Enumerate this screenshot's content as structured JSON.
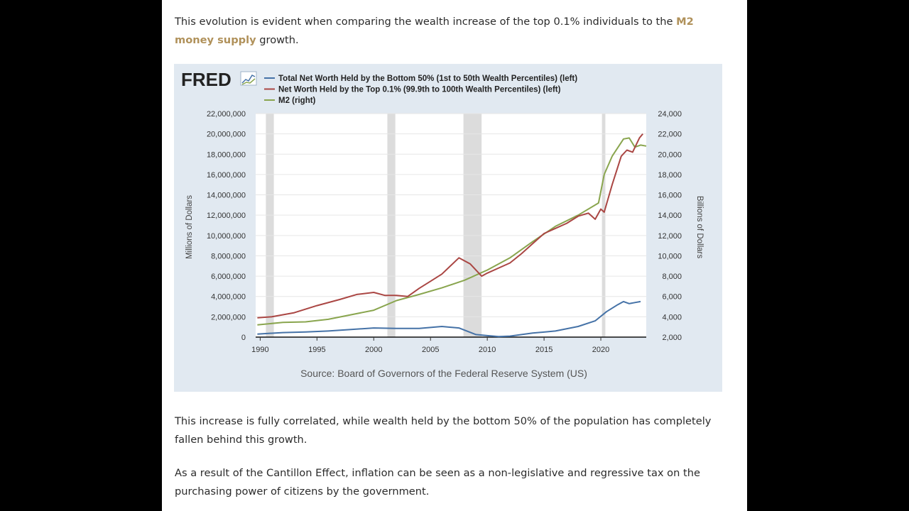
{
  "article": {
    "para1": {
      "prefix": "This evolution is evident when comparing the wealth increase of the top 0.1% individuals to the ",
      "link": "M2 money supply",
      "suffix": " growth."
    },
    "para2": "This increase is fully correlated, while wealth held by the bottom 50% of the population has completely fallen behind this growth.",
    "para3": "As a result of the Cantillon Effect, inflation can be seen as a non-legislative and regressive tax on the purchasing power of citizens by the government.",
    "link_color": "#b0915a"
  },
  "chart_data": {
    "type": "line",
    "logo_text": "FRED",
    "source": "Source: Board of Governors of the Federal Reserve System (US)",
    "ylabel_left": "Millions of Dollars",
    "ylabel_right": "Billions of Dollars",
    "xlim": [
      1989.6,
      2024.0
    ],
    "ylim_left": [
      0,
      22000000
    ],
    "ylim_right": [
      2000,
      24000
    ],
    "x_ticks": [
      1990,
      1995,
      2000,
      2005,
      2010,
      2015,
      2020
    ],
    "y_ticks_left": [
      "22,000,000",
      "20,000,000",
      "18,000,000",
      "16,000,000",
      "14,000,000",
      "12,000,000",
      "10,000,000",
      "8,000,000",
      "6,000,000",
      "4,000,000",
      "2,000,000",
      "0"
    ],
    "y_ticks_right": [
      "24,000",
      "22,000",
      "20,000",
      "18,000",
      "16,000",
      "14,000",
      "12,000",
      "10,000",
      "8,000",
      "6,000",
      "4,000",
      "2,000"
    ],
    "recessions": [
      [
        1990.5,
        1991.2
      ],
      [
        2001.2,
        2001.9
      ],
      [
        2007.9,
        2009.5
      ],
      [
        2020.1,
        2020.4
      ]
    ],
    "grid": true,
    "legend_placement": "top",
    "series": [
      {
        "name": "Total Net Worth Held by the Bottom 50% (1st to 50th Wealth Percentiles) (left)",
        "axis": "left",
        "color": "#4572a7",
        "x": [
          1989.75,
          1992,
          1994,
          1996,
          1998,
          2000,
          2002,
          2004,
          2006,
          2007.5,
          2009,
          2010,
          2011,
          2012,
          2014,
          2016,
          2018,
          2019.5,
          2020.5,
          2021.5,
          2022,
          2022.5,
          2023,
          2023.5
        ],
        "values": [
          300000,
          450000,
          500000,
          600000,
          750000,
          900000,
          850000,
          850000,
          1050000,
          900000,
          250000,
          150000,
          50000,
          100000,
          400000,
          600000,
          1050000,
          1600000,
          2500000,
          3200000,
          3500000,
          3300000,
          3400000,
          3500000
        ]
      },
      {
        "name": "Net Worth Held by the Top 0.1% (99.9th to 100th Wealth Percentiles) (left)",
        "axis": "left",
        "color": "#aa4643",
        "x": [
          1989.75,
          1991,
          1993,
          1995,
          1997,
          1998.5,
          2000,
          2001,
          2002,
          2003,
          2004,
          2005,
          2006,
          2007.5,
          2008.5,
          2009.5,
          2010,
          2011,
          2012,
          2013,
          2014,
          2015,
          2016,
          2017,
          2018,
          2018.9,
          2019.5,
          2020,
          2020.3,
          2021,
          2021.8,
          2022.3,
          2022.8,
          2023.4,
          2023.7
        ],
        "values": [
          1900000,
          2000000,
          2400000,
          3100000,
          3700000,
          4200000,
          4400000,
          4100000,
          4100000,
          4000000,
          4800000,
          5500000,
          6200000,
          7800000,
          7200000,
          6000000,
          6300000,
          6800000,
          7300000,
          8200000,
          9200000,
          10200000,
          10700000,
          11200000,
          11900000,
          12200000,
          11600000,
          12600000,
          12300000,
          15000000,
          17800000,
          18400000,
          18200000,
          19600000,
          20000000
        ]
      },
      {
        "name": "M2 (right)",
        "axis": "right",
        "color": "#89a54e",
        "x": [
          1989.75,
          1992,
          1994,
          1996,
          1998,
          2000,
          2002,
          2004,
          2006,
          2008,
          2010,
          2012,
          2014,
          2016,
          2018,
          2019.8,
          2020.3,
          2021,
          2022,
          2022.5,
          2023,
          2023.5,
          2024
        ],
        "values": [
          3200,
          3450,
          3500,
          3750,
          4200,
          4650,
          5600,
          6200,
          6850,
          7600,
          8600,
          9800,
          11400,
          12900,
          14000,
          15200,
          18000,
          19800,
          21500,
          21600,
          20700,
          20900,
          20800
        ]
      }
    ]
  }
}
